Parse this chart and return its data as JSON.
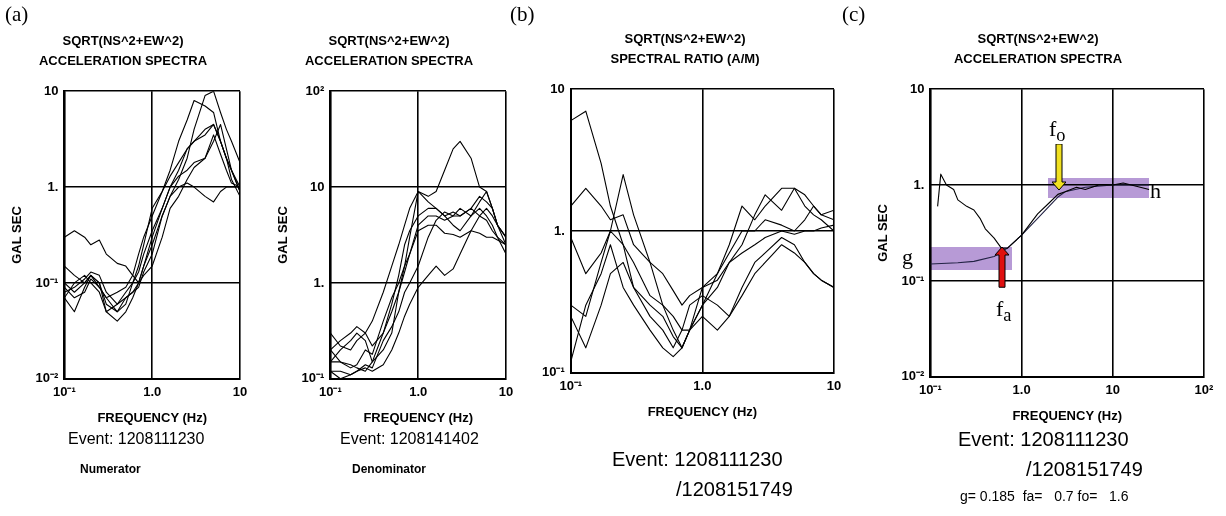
{
  "chart_data": [
    {
      "type": "line",
      "title": "SQRT(NS^2+EW^2)",
      "subtitle": "ACCELERATION SPECTRA",
      "xlabel": "FREQUENCY (Hz)",
      "ylabel": "GAL SEC",
      "log": "xy",
      "grid": true,
      "xlim": [
        0.1,
        10
      ],
      "xticks": [
        {
          "value": 0.1,
          "label": "10⁻¹"
        },
        {
          "value": 1,
          "label": "1.0"
        },
        {
          "value": 10,
          "label": "10"
        }
      ],
      "ylim": [
        0.01,
        10
      ],
      "yticks": [
        {
          "value": 0.01,
          "label": "10⁻²"
        },
        {
          "value": 0.1,
          "label": "10⁻¹"
        },
        {
          "value": 1,
          "label": "1."
        },
        {
          "value": 10,
          "label": "10"
        }
      ],
      "x": [
        0.1,
        0.13,
        0.17,
        0.2,
        0.25,
        0.3,
        0.4,
        0.5,
        0.6,
        0.7,
        0.8,
        1,
        1.3,
        1.6,
        2,
        2.5,
        3,
        4,
        5,
        6,
        7,
        8,
        10
      ],
      "series": [
        {
          "color": "#000000",
          "values": [
            0.3,
            0.35,
            0.3,
            0.25,
            0.28,
            0.2,
            0.16,
            0.15,
            0.12,
            0.1,
            0.15,
            0.25,
            0.5,
            0.8,
            1.2,
            2,
            4,
            9,
            10,
            6,
            4,
            3,
            1.8
          ]
        },
        {
          "color": "#000000",
          "values": [
            0.07,
            0.1,
            0.12,
            0.1,
            0.08,
            0.05,
            0.06,
            0.07,
            0.08,
            0.1,
            0.15,
            0.3,
            0.6,
            1,
            1.5,
            2.5,
            3,
            3.5,
            4.5,
            3,
            2,
            1.5,
            1
          ]
        },
        {
          "color": "#000000",
          "values": [
            0.15,
            0.12,
            0.1,
            0.12,
            0.09,
            0.07,
            0.08,
            0.09,
            0.12,
            0.2,
            0.3,
            0.5,
            0.9,
            1.5,
            3,
            5,
            8,
            7,
            6,
            3,
            2,
            1.5,
            0.9
          ]
        },
        {
          "color": "#000000",
          "values": [
            0.07,
            0.05,
            0.09,
            0.12,
            0.1,
            0.06,
            0.05,
            0.06,
            0.1,
            0.15,
            0.25,
            0.6,
            0.9,
            1.3,
            1.8,
            2.5,
            3,
            4,
            4.5,
            3,
            2,
            1.2,
            0.8
          ]
        },
        {
          "color": "#000000",
          "values": [
            0.1,
            0.08,
            0.1,
            0.12,
            0.1,
            0.05,
            0.04,
            0.05,
            0.07,
            0.1,
            0.12,
            0.15,
            0.3,
            0.6,
            0.8,
            1.2,
            1.6,
            2,
            3,
            4.5,
            2.5,
            1.5,
            0.9
          ]
        },
        {
          "color": "#000000",
          "values": [
            0.08,
            0.09,
            0.11,
            0.13,
            0.12,
            0.08,
            0.06,
            0.08,
            0.1,
            0.13,
            0.2,
            0.35,
            0.6,
            1,
            1.3,
            1.5,
            1.8,
            2,
            3.5,
            2.2,
            1.5,
            1.1,
            1
          ]
        },
        {
          "color": "#000000",
          "values": [
            0.09,
            0.07,
            0.08,
            0.11,
            0.09,
            0.07,
            0.05,
            0.07,
            0.08,
            0.09,
            0.13,
            0.2,
            0.5,
            0.8,
            1,
            1.1,
            1,
            0.8,
            0.7,
            0.9,
            1,
            1,
            1
          ]
        }
      ],
      "annotations": [
        "(a)",
        "Event: 1208111230",
        "Numerator"
      ]
    },
    {
      "type": "line",
      "title": "SQRT(NS^2+EW^2)",
      "subtitle": "ACCELERATION SPECTRA",
      "xlabel": "FREQUENCY (Hz)",
      "ylabel": "GAL SEC",
      "log": "xy",
      "grid": true,
      "xlim": [
        0.1,
        10
      ],
      "xticks": [
        {
          "value": 0.1,
          "label": "10⁻¹"
        },
        {
          "value": 1,
          "label": "1.0"
        },
        {
          "value": 10,
          "label": "10"
        }
      ],
      "ylim": [
        0.1,
        100
      ],
      "yticks": [
        {
          "value": 0.1,
          "label": "10⁻¹"
        },
        {
          "value": 1,
          "label": "1."
        },
        {
          "value": 10,
          "label": "10"
        },
        {
          "value": 100,
          "label": "10²"
        }
      ],
      "x": [
        0.1,
        0.13,
        0.17,
        0.2,
        0.25,
        0.3,
        0.4,
        0.5,
        0.6,
        0.7,
        0.8,
        1,
        1.3,
        1.6,
        2,
        2.5,
        3,
        4,
        5,
        6,
        7,
        8,
        10
      ],
      "series": [
        {
          "color": "#000000",
          "values": [
            0.3,
            0.22,
            0.2,
            0.25,
            0.3,
            0.4,
            0.8,
            1.5,
            2.5,
            4,
            6,
            9,
            8,
            9,
            15,
            25,
            30,
            20,
            10,
            9,
            6,
            4,
            3
          ]
        },
        {
          "color": "#000000",
          "values": [
            0.15,
            0.2,
            0.25,
            0.3,
            0.25,
            0.15,
            0.2,
            0.3,
            0.8,
            1.5,
            3,
            9,
            7,
            6,
            5,
            5.5,
            5,
            6,
            8,
            7,
            6,
            4,
            3
          ]
        },
        {
          "color": "#000000",
          "values": [
            0.2,
            0.15,
            0.13,
            0.14,
            0.2,
            0.18,
            0.4,
            0.7,
            1,
            1.5,
            2,
            4,
            5,
            5,
            4.5,
            5,
            6,
            5,
            7,
            9,
            6,
            4,
            2.5
          ]
        },
        {
          "color": "#000000",
          "values": [
            0.15,
            0.15,
            0.14,
            0.13,
            0.12,
            0.15,
            0.3,
            0.6,
            1.2,
            2.5,
            3.5,
            5,
            6,
            6,
            5,
            4,
            3.5,
            5,
            6,
            5,
            4,
            3,
            2
          ]
        },
        {
          "color": "#000000",
          "values": [
            0.12,
            0.12,
            0.11,
            0.12,
            0.14,
            0.13,
            0.25,
            0.35,
            0.5,
            0.8,
            1,
            1.5,
            3,
            4.5,
            5.5,
            5,
            5,
            6,
            5,
            4.5,
            3.5,
            3,
            2.5
          ]
        },
        {
          "color": "#000000",
          "values": [
            0.12,
            0.1,
            0.11,
            0.12,
            0.13,
            0.12,
            0.14,
            0.2,
            0.3,
            0.45,
            0.6,
            0.9,
            1.2,
            1.5,
            1.2,
            1.4,
            2,
            3.5,
            5,
            6,
            5,
            4,
            3
          ]
        },
        {
          "color": "#000000",
          "values": [
            0.2,
            0.25,
            0.3,
            0.35,
            0.3,
            0.22,
            0.3,
            0.5,
            0.8,
            1.3,
            2,
            3.5,
            4,
            4,
            3.3,
            3.2,
            3,
            3.5,
            3.3,
            3,
            3,
            2.8,
            2.5
          ]
        }
      ],
      "annotations": [
        "Event: 1208141402",
        "Denominator"
      ]
    },
    {
      "type": "line",
      "title": "SQRT(NS^2+EW^2)",
      "subtitle": "SPECTRAL RATIO (A/M)",
      "xlabel": "FREQUENCY (Hz)",
      "log": "xy",
      "grid": true,
      "xlim": [
        0.1,
        10
      ],
      "xticks": [
        {
          "value": 0.1,
          "label": "10⁻¹"
        },
        {
          "value": 1,
          "label": "1.0"
        },
        {
          "value": 10,
          "label": "10"
        }
      ],
      "ylim": [
        0.1,
        10
      ],
      "yticks": [
        {
          "value": 0.1,
          "label": "10⁻¹"
        },
        {
          "value": 1,
          "label": "1."
        },
        {
          "value": 10,
          "label": "10"
        }
      ],
      "x": [
        0.1,
        0.13,
        0.17,
        0.2,
        0.25,
        0.3,
        0.4,
        0.5,
        0.6,
        0.7,
        0.8,
        1,
        1.3,
        1.6,
        2,
        2.5,
        3,
        4,
        5,
        6,
        7,
        8,
        10
      ],
      "series": [
        {
          "color": "#000000",
          "values": [
            6,
            7,
            3,
            1.5,
            0.8,
            0.6,
            0.35,
            0.3,
            0.25,
            0.2,
            0.2,
            0.4,
            0.5,
            0.8,
            1.5,
            1.2,
            1.5,
            2,
            2,
            1.5,
            1.3,
            1.2,
            1
          ]
        },
        {
          "color": "#000000",
          "values": [
            0.9,
            0.5,
            0.7,
            1,
            2.5,
            1.3,
            0.6,
            0.3,
            0.2,
            0.15,
            0.2,
            0.3,
            0.4,
            0.6,
            0.8,
            1.3,
            1.8,
            1.4,
            2,
            1.8,
            1.5,
            1.3,
            1.4
          ]
        },
        {
          "color": "#000000",
          "values": [
            0.3,
            0.25,
            0.6,
            1,
            0.8,
            0.4,
            0.25,
            0.2,
            0.15,
            0.2,
            0.3,
            0.35,
            0.3,
            0.25,
            0.4,
            0.6,
            0.7,
            0.9,
            0.8,
            0.6,
            0.5,
            0.45,
            0.4
          ]
        },
        {
          "color": "#000000",
          "values": [
            0.25,
            0.15,
            0.3,
            0.5,
            0.6,
            0.4,
            0.3,
            0.25,
            0.18,
            0.15,
            0.2,
            0.3,
            0.5,
            0.7,
            1,
            1,
            1.2,
            1.1,
            1,
            1.2,
            1.5,
            1.3,
            1.2
          ]
        },
        {
          "color": "#000000",
          "values": [
            0.12,
            0.3,
            0.5,
            0.8,
            0.4,
            0.3,
            0.2,
            0.15,
            0.13,
            0.15,
            0.2,
            0.25,
            0.2,
            0.25,
            0.35,
            0.5,
            0.6,
            0.8,
            0.7,
            0.6,
            0.5,
            0.45,
            0.4
          ]
        },
        {
          "color": "#000000",
          "values": [
            1.5,
            2,
            1.5,
            1.2,
            1.3,
            0.8,
            0.6,
            0.5,
            0.38,
            0.3,
            0.35,
            0.4,
            0.45,
            0.6,
            0.7,
            0.8,
            0.9,
            1,
            0.95,
            1,
            1,
            1.05,
            1.1
          ]
        }
      ],
      "annotations": [
        "(b)",
        "Event: 1208111230",
        "/1208151749"
      ]
    },
    {
      "type": "line",
      "title": "SQRT(NS^2+EW^2)",
      "subtitle": "ACCELERATION SPECTRA",
      "xlabel": "FREQUENCY (Hz)",
      "ylabel": "GAL SEC",
      "log": "xy",
      "grid": true,
      "xlim": [
        0.1,
        100
      ],
      "xticks": [
        {
          "value": 0.1,
          "label": "10⁻¹"
        },
        {
          "value": 1,
          "label": "1.0"
        },
        {
          "value": 10,
          "label": "10"
        },
        {
          "value": 100,
          "label": "10²"
        }
      ],
      "ylim": [
        0.01,
        10
      ],
      "yticks": [
        {
          "value": 0.01,
          "label": "10⁻²"
        },
        {
          "value": 0.1,
          "label": "10⁻¹"
        },
        {
          "value": 1,
          "label": "1."
        },
        {
          "value": 10,
          "label": "10"
        }
      ],
      "series": [
        {
          "color": "#000000",
          "x": [
            0.12,
            0.13,
            0.15,
            0.18,
            0.2,
            0.25,
            0.3,
            0.35,
            0.4,
            0.5,
            0.6,
            0.7,
            1,
            1.5,
            2,
            2.5,
            3,
            4,
            5,
            7,
            10,
            13,
            20,
            25
          ],
          "values": [
            0.6,
            1.3,
            1,
            0.9,
            0.7,
            0.6,
            0.55,
            0.45,
            0.35,
            0.28,
            0.22,
            0.22,
            0.3,
            0.5,
            0.65,
            0.8,
            0.85,
            0.95,
            0.9,
            1,
            1,
            1.05,
            0.95,
            0.9
          ]
        },
        {
          "color": "#222244",
          "x": [
            0.1,
            0.2,
            0.3,
            0.5,
            0.7,
            1,
            1.5,
            2,
            2.5,
            3,
            5,
            10,
            20,
            25
          ],
          "values": [
            0.15,
            0.155,
            0.16,
            0.18,
            0.22,
            0.3,
            0.45,
            0.6,
            0.75,
            0.85,
            0.95,
            1,
            1,
            1
          ]
        }
      ],
      "annotations": [
        "(c)",
        "g",
        "h",
        "f$_{o}$",
        "f$_{a}$",
        "Event: 1208111230",
        "/1208151749",
        "g= 0.185  fa=   0.7 fo=   1.6"
      ]
    }
  ]
}
